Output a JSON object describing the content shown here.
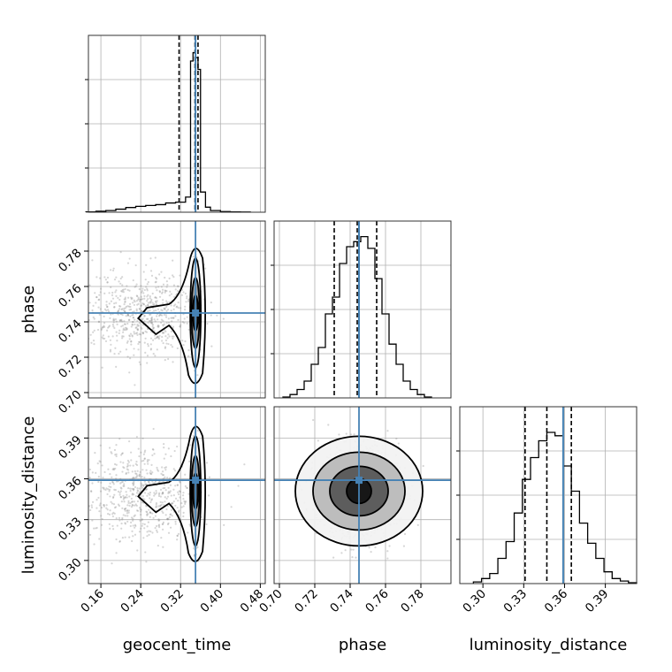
{
  "chart_data": {
    "type": "corner",
    "parameters": [
      "geocent_time",
      "phase",
      "luminosity_distance"
    ],
    "axis_labels": {
      "geocent_time": "geocent_time",
      "phase": "phase",
      "luminosity_distance": "luminosity_distance"
    },
    "truth": {
      "geocent_time": 0.35,
      "phase": 0.745,
      "luminosity_distance": 0.359
    },
    "colors": {
      "truth": "#4682b4",
      "hist": "#000000",
      "points": "#8a8a8a",
      "grid": "#b0b0b0"
    },
    "grid": true,
    "ranges": {
      "geocent_time": [
        0.135,
        0.49
      ],
      "phase": [
        0.697,
        0.797
      ],
      "luminosity_distance": [
        0.283,
        0.413
      ]
    },
    "ticks": {
      "geocent_time": [
        "0.16",
        "0.24",
        "0.32",
        "0.40",
        "0.48"
      ],
      "phase": [
        "0.70",
        "0.72",
        "0.74",
        "0.76",
        "0.78"
      ],
      "luminosity_distance": [
        "0.30",
        "0.33",
        "0.36",
        "0.39"
      ]
    },
    "quantiles": {
      "geocent_time": [
        0.317,
        0.349,
        0.355
      ],
      "phase": [
        0.731,
        0.744,
        0.755
      ],
      "luminosity_distance": [
        0.331,
        0.347,
        0.365
      ]
    },
    "histograms": {
      "geocent_time": {
        "edges": [
          0.13,
          0.15,
          0.17,
          0.19,
          0.21,
          0.23,
          0.25,
          0.27,
          0.29,
          0.31,
          0.33,
          0.34,
          0.345,
          0.35,
          0.355,
          0.36,
          0.37,
          0.38,
          0.4,
          0.42,
          0.44,
          0.46
        ],
        "counts": [
          0.002,
          0.006,
          0.01,
          0.018,
          0.028,
          0.035,
          0.04,
          0.045,
          0.055,
          0.06,
          0.09,
          0.9,
          0.95,
          0.92,
          0.85,
          0.12,
          0.03,
          0.01,
          0.004,
          0.002,
          0.001
        ]
      },
      "phase": {
        "edges": [
          0.702,
          0.706,
          0.71,
          0.714,
          0.718,
          0.722,
          0.726,
          0.73,
          0.734,
          0.738,
          0.742,
          0.746,
          0.75,
          0.754,
          0.758,
          0.762,
          0.766,
          0.77,
          0.774,
          0.778,
          0.782,
          0.786
        ],
        "counts": [
          0.005,
          0.02,
          0.05,
          0.1,
          0.2,
          0.3,
          0.5,
          0.6,
          0.8,
          0.9,
          0.93,
          0.96,
          0.89,
          0.71,
          0.5,
          0.32,
          0.2,
          0.1,
          0.05,
          0.02,
          0.005
        ]
      },
      "luminosity_distance": {
        "edges": [
          0.293,
          0.299,
          0.305,
          0.311,
          0.317,
          0.323,
          0.329,
          0.335,
          0.341,
          0.347,
          0.353,
          0.359,
          0.365,
          0.371,
          0.377,
          0.383,
          0.389,
          0.395,
          0.401,
          0.407,
          0.413
        ],
        "counts": [
          0.01,
          0.03,
          0.06,
          0.15,
          0.25,
          0.42,
          0.62,
          0.75,
          0.85,
          0.9,
          0.88,
          0.7,
          0.55,
          0.36,
          0.24,
          0.15,
          0.07,
          0.03,
          0.015,
          0.005
        ]
      }
    },
    "scatter_seed": 7
  }
}
